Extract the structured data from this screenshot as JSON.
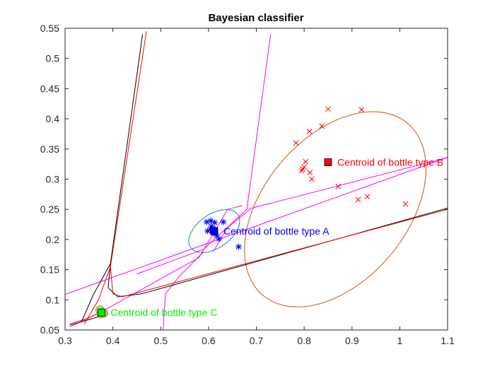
{
  "chart_data": {
    "type": "scatter",
    "title": "Bayesian classifier",
    "xlabel": "",
    "ylabel": "",
    "xlim": [
      0.3,
      1.1
    ],
    "ylim": [
      0.05,
      0.55
    ],
    "xticks": [
      "0.3",
      "0.4",
      "0.5",
      "0.6",
      "0.7",
      "0.8",
      "0.9",
      "1",
      "1.1"
    ],
    "yticks": [
      "0.05",
      "0.1",
      "0.15",
      "0.2",
      "0.25",
      "0.3",
      "0.35",
      "0.4",
      "0.45",
      "0.5",
      "0.55"
    ],
    "grid": false,
    "colors": {
      "class_a": "#0000ff",
      "class_b": "#ff0000",
      "class_c": "#00ee00",
      "ellipse_a": "#3b9bbf",
      "ellipse_b": "#d0703a",
      "boundary_magenta": "#ff00ff",
      "boundary_black": "#000000",
      "boundary_red": "#ff0000"
    },
    "series": [
      {
        "marker": "asterisk",
        "points": [
          [
            0.596,
            0.229
          ],
          [
            0.605,
            0.231
          ],
          [
            0.613,
            0.228
          ],
          [
            0.606,
            0.222
          ],
          [
            0.631,
            0.229
          ],
          [
            0.598,
            0.214
          ],
          [
            0.609,
            0.211
          ],
          [
            0.616,
            0.207
          ],
          [
            0.622,
            0.201
          ],
          [
            0.604,
            0.216
          ],
          [
            0.663,
            0.188
          ],
          [
            0.61,
            0.218
          ]
        ]
      },
      {
        "marker": "x",
        "points": [
          [
            0.85,
            0.416
          ],
          [
            0.92,
            0.415
          ],
          [
            0.811,
            0.379
          ],
          [
            0.837,
            0.388
          ],
          [
            0.783,
            0.36
          ],
          [
            0.803,
            0.329
          ],
          [
            0.797,
            0.317
          ],
          [
            0.795,
            0.314
          ],
          [
            0.8,
            0.32
          ],
          [
            0.812,
            0.311
          ],
          [
            0.816,
            0.3
          ],
          [
            0.871,
            0.288
          ],
          [
            0.913,
            0.266
          ],
          [
            0.932,
            0.271
          ],
          [
            1.012,
            0.259
          ]
        ]
      },
      {
        "marker": "o",
        "points": [
          [
            0.373,
            0.083
          ],
          [
            0.378,
            0.079
          ],
          [
            0.375,
            0.077
          ],
          [
            0.381,
            0.078
          ]
        ]
      }
    ],
    "centroids": [
      {
        "label": "Centroid of bottle type A",
        "x": 0.612,
        "y": 0.214
      },
      {
        "label": "Centroid of bottle type B",
        "x": 0.85,
        "y": 0.328
      },
      {
        "label": "Centroid of bottle type C",
        "x": 0.376,
        "y": 0.079
      }
    ],
    "ellipses": [
      {
        "cx": 0.612,
        "cy": 0.214,
        "rx": 0.06,
        "ry": 0.035,
        "angle_deg": -35
      },
      {
        "cx": 0.865,
        "cy": 0.25,
        "rx": 0.235,
        "ry": 0.15,
        "angle_deg": -50
      }
    ],
    "boundaries": {
      "magenta": [
        [
          [
            0.3,
            0.109
          ],
          [
            1.1,
            0.336
          ]
        ],
        [
          [
            0.45,
            0.143
          ],
          [
            0.56,
            0.175
          ],
          [
            0.59,
            0.184
          ],
          [
            0.68,
            0.25
          ],
          [
            0.73,
            0.54
          ]
        ],
        [
          [
            0.31,
            0.055
          ],
          [
            0.38,
            0.082
          ],
          [
            0.58,
            0.17
          ],
          [
            0.64,
            0.25
          ]
        ],
        [
          [
            0.505,
            0.05
          ],
          [
            0.51,
            0.11
          ],
          [
            0.54,
            0.14
          ],
          [
            0.59,
            0.18
          ]
        ],
        [
          [
            0.61,
            0.18
          ],
          [
            0.64,
            0.22
          ],
          [
            0.69,
            0.252
          ],
          [
            0.75,
            0.264
          ],
          [
            1.1,
            0.336
          ]
        ],
        [
          [
            0.64,
            0.25
          ],
          [
            0.67,
            0.256
          ]
        ]
      ],
      "black": [
        [
          [
            0.395,
            0.16
          ],
          [
            0.36,
            0.11
          ],
          [
            0.335,
            0.065
          ]
        ],
        [
          [
            0.395,
            0.16
          ],
          [
            0.462,
            0.54
          ]
        ],
        [
          [
            0.395,
            0.16
          ],
          [
            0.39,
            0.12
          ],
          [
            0.41,
            0.105
          ],
          [
            0.46,
            0.11
          ],
          [
            1.1,
            0.252
          ]
        ],
        [
          [
            0.31,
            0.058
          ],
          [
            0.37,
            0.072
          ],
          [
            0.39,
            0.078
          ]
        ]
      ],
      "red": [
        [
          [
            0.395,
            0.155
          ],
          [
            0.47,
            0.545
          ]
        ],
        [
          [
            0.395,
            0.155
          ],
          [
            0.37,
            0.1
          ],
          [
            0.34,
            0.06
          ]
        ],
        [
          [
            0.395,
            0.155
          ],
          [
            0.4,
            0.11
          ],
          [
            0.42,
            0.105
          ],
          [
            1.1,
            0.25
          ]
        ],
        [
          [
            0.31,
            0.06
          ],
          [
            0.35,
            0.07
          ],
          [
            0.38,
            0.082
          ]
        ]
      ]
    }
  }
}
